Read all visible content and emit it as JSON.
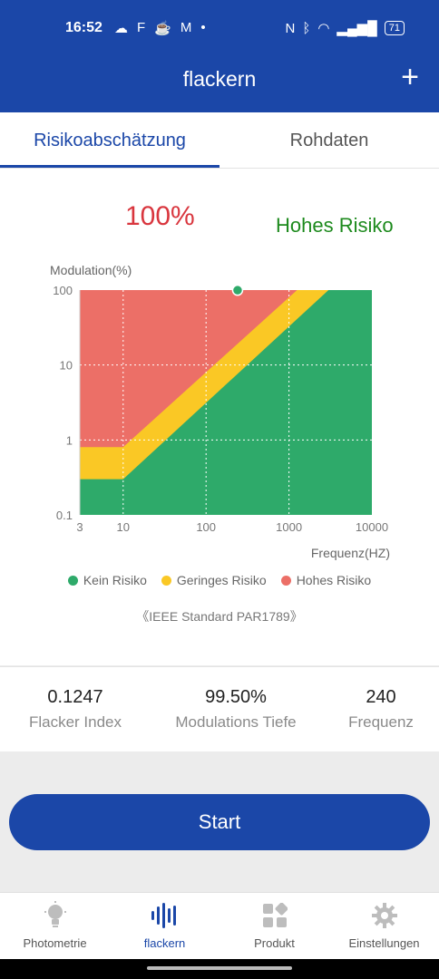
{
  "status": {
    "time": "16:52",
    "left_icons": [
      "☁",
      "F",
      "☕",
      "M",
      "•"
    ],
    "nfc": "N",
    "bluetooth": "ᛒ",
    "wifi": "◠",
    "signal": "▂▄▆█",
    "battery": "71"
  },
  "header": {
    "title": "flackern",
    "plus_label": "+"
  },
  "tabs": [
    {
      "label": "Risikoabschätzung",
      "active": true
    },
    {
      "label": "Rohdaten",
      "active": false
    }
  ],
  "result": {
    "percent": "100%",
    "risk": "Hohes Risiko"
  },
  "chart_data": {
    "type": "area",
    "ylabel": "Modulation(%)",
    "xlabel": "Frequenz(HZ)",
    "x_scale": "log",
    "y_scale": "log",
    "xlim": [
      3,
      10000
    ],
    "ylim": [
      0.1,
      100
    ],
    "x_ticks": [
      "3",
      "10",
      "100",
      "1000",
      "10000"
    ],
    "y_ticks": [
      "100",
      "10",
      "1",
      "0.1"
    ],
    "grid": true,
    "legend_position": "bottom",
    "regions": [
      {
        "name": "Kein Risiko",
        "color": "#2eaa6a"
      },
      {
        "name": "Geringes Risiko",
        "color": "#fac825"
      },
      {
        "name": "Hohes Risiko",
        "color": "#ec6f67"
      }
    ],
    "point": {
      "x": 240,
      "y": 99.5,
      "color": "#2eaa6a"
    }
  },
  "legend": [
    {
      "label": "Kein Risiko",
      "color": "#2eaa6a"
    },
    {
      "label": "Geringes Risiko",
      "color": "#fac825"
    },
    {
      "label": "Hohes Risiko",
      "color": "#ec6f67"
    }
  ],
  "standard": "《IEEE Standard PAR1789》",
  "stats": [
    {
      "value": "0.1247",
      "label": "Flacker Index"
    },
    {
      "value": "99.50%",
      "label": "Modulations Tiefe"
    },
    {
      "value": "240",
      "label": "Frequenz"
    }
  ],
  "start_label": "Start",
  "nav": [
    {
      "label": "Photometrie",
      "icon": "bulb-icon",
      "active": false
    },
    {
      "label": "flackern",
      "icon": "waveform-icon",
      "active": true
    },
    {
      "label": "Produkt",
      "icon": "grid-icon",
      "active": false
    },
    {
      "label": "Einstellungen",
      "icon": "gear-icon",
      "active": false
    }
  ],
  "colors": {
    "primary": "#1b47a8",
    "risk_text": "#1d8a1d",
    "percent_text": "#d9363e"
  }
}
